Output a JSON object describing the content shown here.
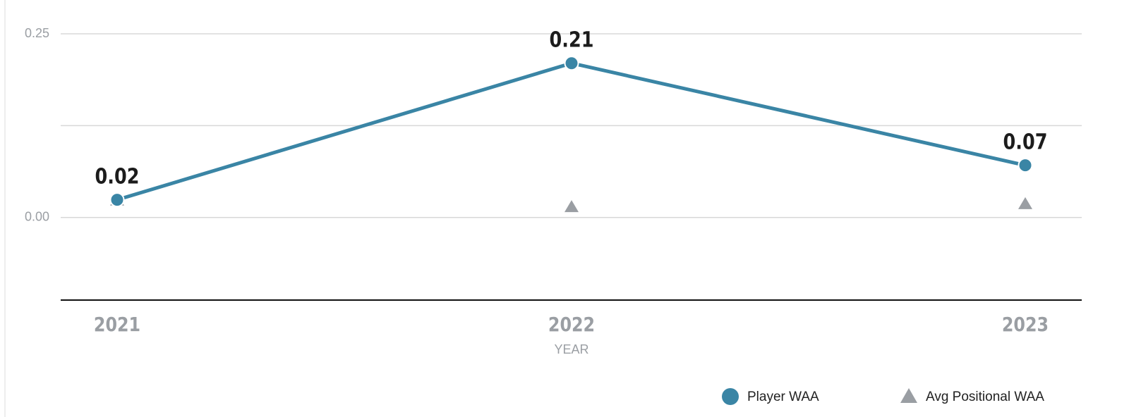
{
  "chart_data": {
    "type": "line",
    "x_label": "YEAR",
    "categories": [
      "2021",
      "2022",
      "2023"
    ],
    "series": [
      {
        "name": "Player WAA",
        "color": "#3a85a5",
        "marker": "circle",
        "show_line": true,
        "values": [
          0.024,
          0.21,
          0.071
        ],
        "value_labels": [
          "0.02",
          "0.21",
          "0.07"
        ]
      },
      {
        "name": "Avg Positional WAA",
        "color": "#9a9ea3",
        "marker": "triangle",
        "show_line": false,
        "values": [
          0.023,
          0.014,
          0.018
        ]
      }
    ],
    "ylim": [
      -0.1125,
      0.25
    ],
    "yticks": [
      {
        "value": 0,
        "label": "0.00"
      },
      0.25
    ],
    "ygrid": [
      0.125
    ],
    "grid": true
  }
}
